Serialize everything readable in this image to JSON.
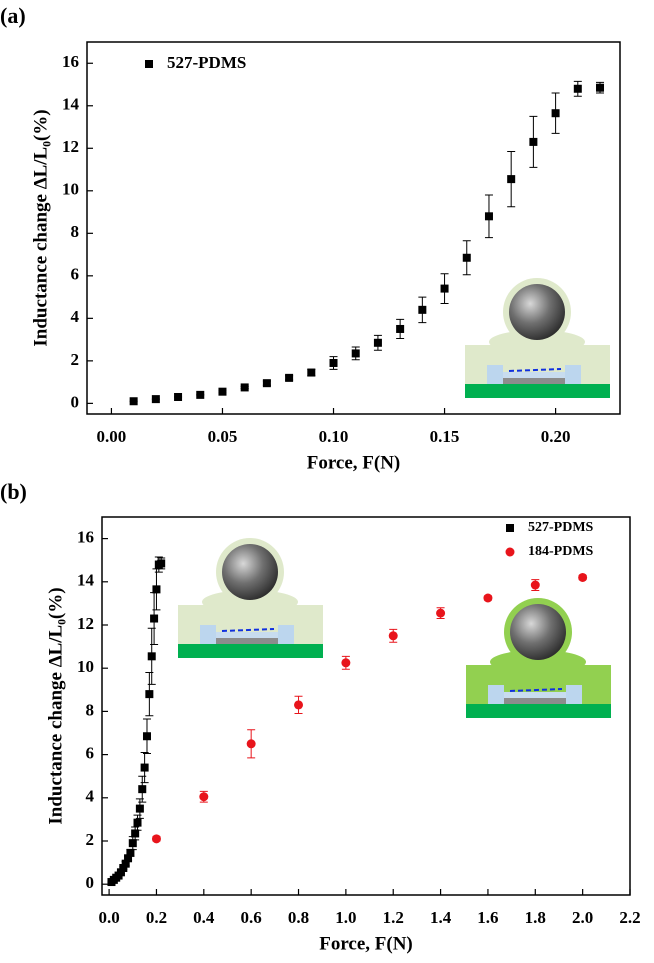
{
  "chart_data": [
    {
      "type": "scatter",
      "panel_label": "(a)",
      "x_label": "Force, F(N)",
      "y_label": "Inductance change ΔL/L₀(%)",
      "xlim": [
        -0.011,
        0.229
      ],
      "ylim": [
        -0.5,
        17
      ],
      "xticks": [
        {
          "value": 0,
          "label": "0.00"
        },
        0.05,
        {
          "value": 0.1,
          "label": "0.10"
        },
        0.15,
        {
          "value": 0.2,
          "label": "0.20"
        }
      ],
      "yticks": [
        0,
        2,
        4,
        6,
        8,
        10,
        12,
        14,
        16
      ],
      "legend": "upper left",
      "series": [
        {
          "name": "527-PDMS",
          "color": "#000000",
          "marker": "square",
          "x": [
            0.01,
            0.02,
            0.03,
            0.04,
            0.05,
            0.06,
            0.07,
            0.08,
            0.09,
            0.1,
            0.11,
            0.12,
            0.13,
            0.14,
            0.15,
            0.16,
            0.17,
            0.18,
            0.19,
            0.2,
            0.21,
            0.22
          ],
          "values": [
            0.1,
            0.2,
            0.3,
            0.4,
            0.55,
            0.75,
            0.95,
            1.2,
            1.45,
            1.9,
            2.35,
            2.85,
            3.5,
            4.4,
            5.4,
            6.85,
            8.8,
            10.55,
            12.3,
            13.65,
            14.8,
            14.85
          ],
          "errors": [
            0,
            0,
            0,
            0,
            0.05,
            0.05,
            0.1,
            0.1,
            0.15,
            0.3,
            0.3,
            0.35,
            0.45,
            0.6,
            0.7,
            0.8,
            1.0,
            1.3,
            1.2,
            0.95,
            0.35,
            0.25
          ]
        }
      ]
    },
    {
      "type": "scatter",
      "panel_label": "(b)",
      "x_label": "Force, F(N)",
      "y_label": "Inductance change ΔL/L₀(%)",
      "xlim": [
        -0.03,
        2.2
      ],
      "ylim": [
        -0.5,
        17
      ],
      "xticks": [
        {
          "value": 0,
          "label": "0.0"
        },
        0.2,
        0.4,
        0.6,
        0.8,
        {
          "value": 1,
          "label": "1.0"
        },
        1.2,
        1.4,
        1.6,
        1.8,
        {
          "value": 2,
          "label": "2.0"
        },
        2.2
      ],
      "yticks": [
        0,
        2,
        4,
        6,
        8,
        10,
        12,
        14,
        16
      ],
      "legend": "upper right",
      "series": [
        {
          "name": "527-PDMS",
          "color": "#000000",
          "marker": "square",
          "x": [
            0.01,
            0.02,
            0.03,
            0.04,
            0.05,
            0.06,
            0.07,
            0.08,
            0.09,
            0.1,
            0.11,
            0.12,
            0.13,
            0.14,
            0.15,
            0.16,
            0.17,
            0.18,
            0.19,
            0.2,
            0.21,
            0.22
          ],
          "values": [
            0.1,
            0.2,
            0.3,
            0.4,
            0.55,
            0.75,
            0.95,
            1.2,
            1.45,
            1.9,
            2.35,
            2.85,
            3.5,
            4.4,
            5.4,
            6.85,
            8.8,
            10.55,
            12.3,
            13.65,
            14.8,
            14.85
          ],
          "errors": [
            0,
            0,
            0,
            0,
            0.05,
            0.05,
            0.1,
            0.1,
            0.15,
            0.3,
            0.3,
            0.35,
            0.45,
            0.6,
            0.7,
            0.8,
            1.0,
            1.3,
            1.2,
            0.95,
            0.35,
            0.25
          ]
        },
        {
          "name": "184-PDMS",
          "color": "#e8141b",
          "marker": "circle",
          "x": [
            0.2,
            0.4,
            0.6,
            0.8,
            1.0,
            1.2,
            1.4,
            1.6,
            1.8,
            2.0
          ],
          "values": [
            2.1,
            4.05,
            6.5,
            8.3,
            10.25,
            11.5,
            12.55,
            13.25,
            13.85,
            14.2
          ],
          "errors": [
            0.1,
            0.25,
            0.65,
            0.4,
            0.3,
            0.3,
            0.25,
            0.1,
            0.25,
            0.1
          ]
        }
      ]
    }
  ]
}
